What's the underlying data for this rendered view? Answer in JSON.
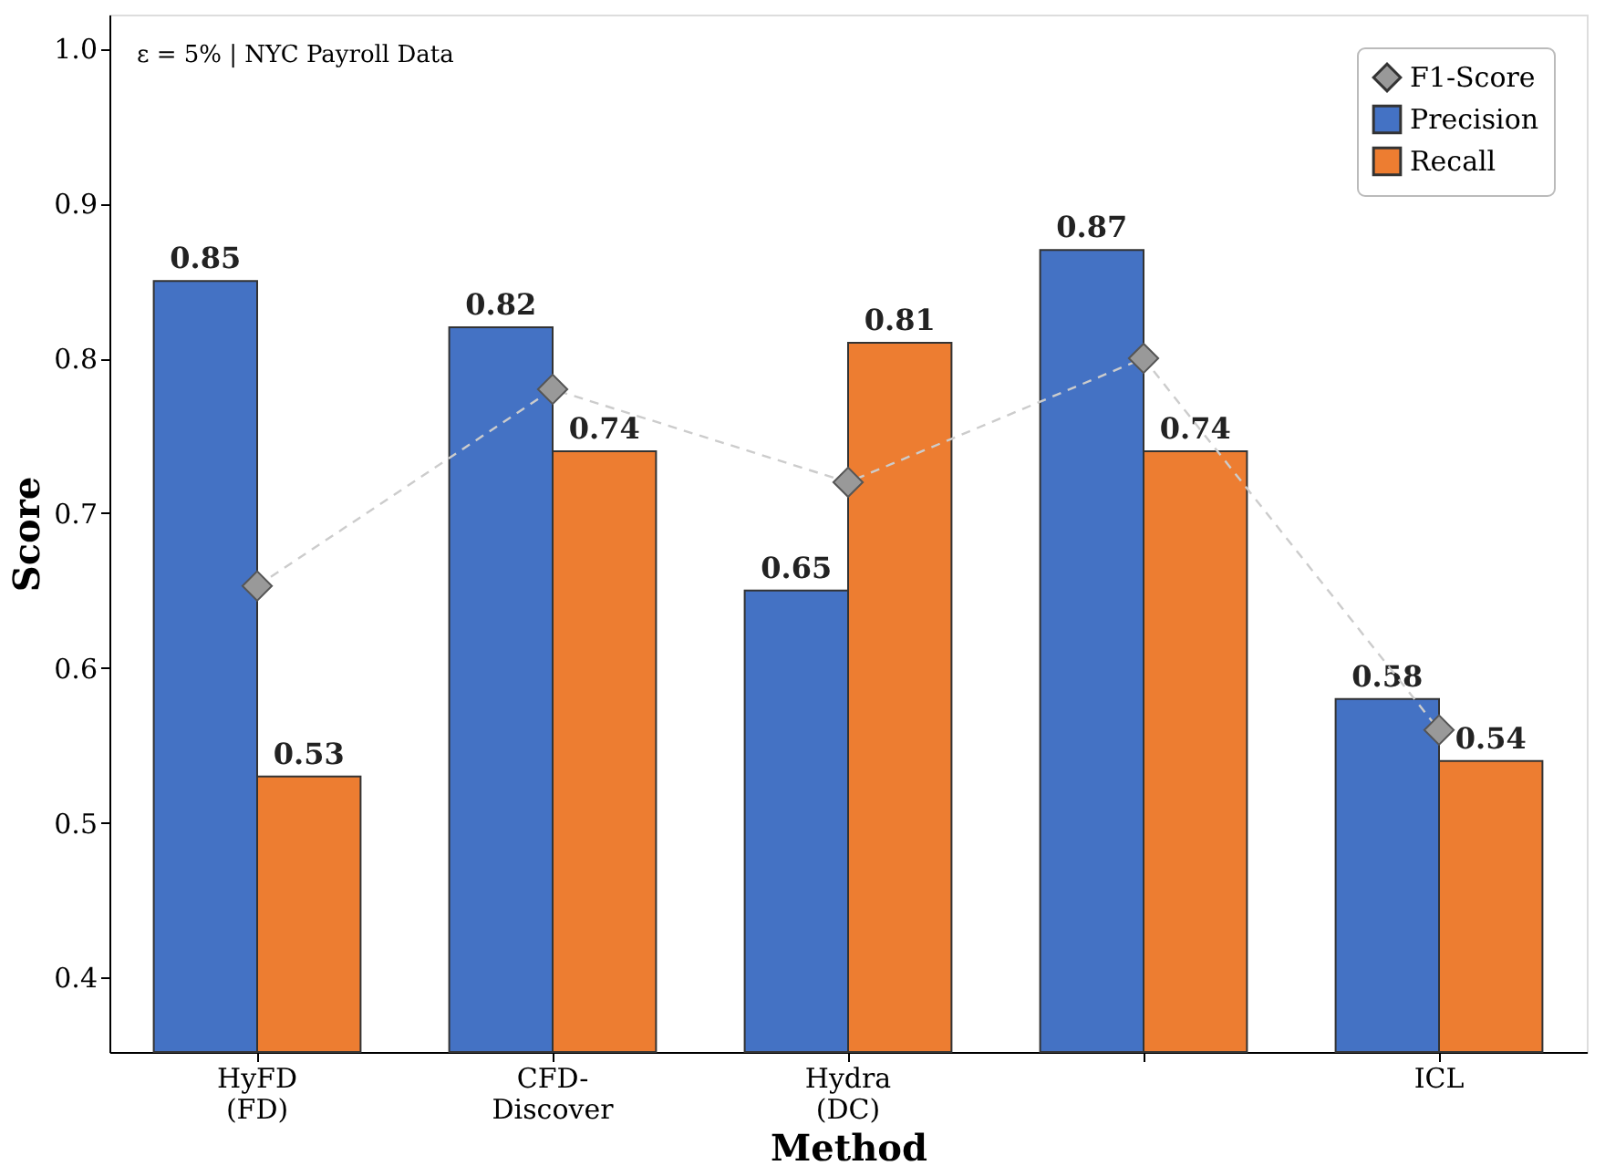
{
  "chart_data": {
    "type": "bar",
    "xlabel": "Method",
    "ylabel": "Score",
    "categories": [
      "HyFD (FD)",
      "CFD-Discover",
      "Hydra (DC)",
      null,
      "ICL"
    ],
    "series": [
      {
        "name": "F1-Score",
        "type": "line",
        "color": "#999999",
        "marker": "diamond",
        "line_style": "dashed",
        "values": [
          0.653,
          0.78,
          0.72,
          0.8,
          0.56
        ]
      },
      {
        "name": "Precision",
        "color": "#4472c4",
        "values": [
          0.85,
          0.82,
          0.65,
          0.87,
          0.58
        ],
        "value_labels": [
          "0.85",
          "0.82",
          "0.65",
          "0.87",
          "0.58"
        ]
      },
      {
        "name": "Recall",
        "color": "#ed7d31",
        "values": [
          0.53,
          0.74,
          0.81,
          0.74,
          0.54
        ],
        "value_labels": [
          "0.53",
          "0.74",
          "0.81",
          "0.74",
          "0.54"
        ]
      }
    ],
    "ylim": [
      0.352,
      1.022
    ],
    "yticks": [
      {
        "value": 0.4,
        "label": "0.4"
      },
      {
        "value": 0.5,
        "label": "0.5"
      },
      {
        "value": 0.6,
        "label": "0.6"
      },
      {
        "value": 0.7,
        "label": "0.7"
      },
      {
        "value": 0.8,
        "label": "0.8"
      },
      {
        "value": 0.9,
        "label": "0.9"
      },
      {
        "value": 1.0,
        "label": "1.0"
      }
    ],
    "grid": false,
    "legend": "top right",
    "annotations": [
      "ε = 5%  |  NYC Payroll Data"
    ]
  }
}
